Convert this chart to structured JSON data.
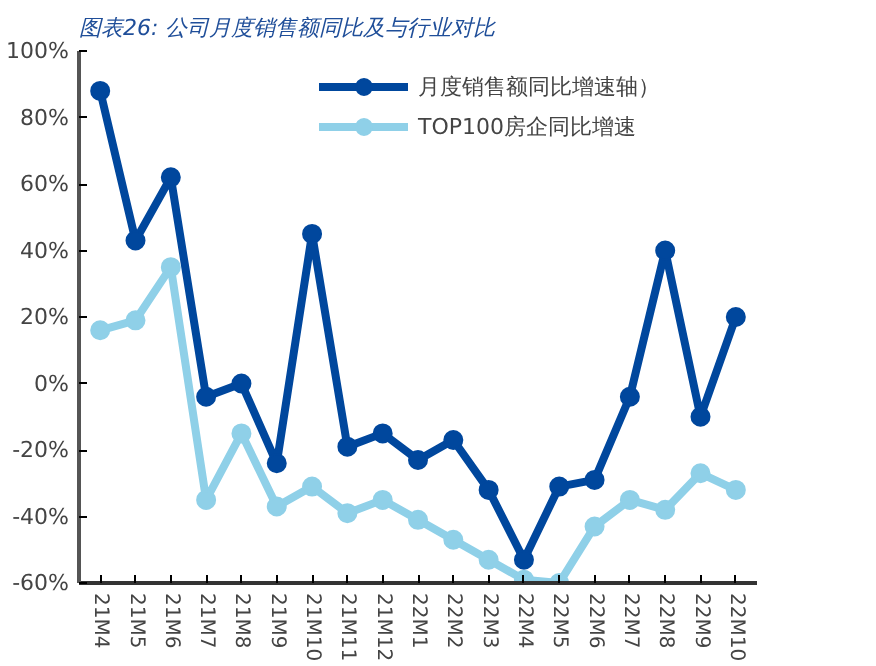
{
  "chart_data": {
    "type": "line",
    "title": "图表26: 公司月度销售额同比及与行业对比",
    "categories": [
      "21M4",
      "21M5",
      "21M6",
      "21M7",
      "21M8",
      "21M9",
      "21M10",
      "21M11",
      "21M12",
      "22M1",
      "22M2",
      "22M3",
      "22M4",
      "22M5",
      "22M6",
      "22M7",
      "22M8",
      "22M9",
      "22M10"
    ],
    "series": [
      {
        "name": "月度销售额同比增速轴）",
        "color": "#00479d",
        "values": [
          88,
          43,
          62,
          -4,
          0,
          -24,
          45,
          -19,
          -15,
          -23,
          -17,
          -32,
          -53,
          -31,
          -29,
          -4,
          40,
          -10,
          20
        ]
      },
      {
        "name": "TOP100房企同比增速",
        "color": "#8fd0e8",
        "values": [
          16,
          19,
          35,
          -35,
          -15,
          -37,
          -31,
          -39,
          -35,
          -41,
          -47,
          -53,
          -59,
          -60,
          -43,
          -35,
          -38,
          -27,
          -32
        ]
      }
    ],
    "ylim": [
      -60,
      100
    ],
    "yticks": [
      {
        "value": -60,
        "label": "-60%"
      },
      {
        "value": -40,
        "label": "-40%"
      },
      {
        "value": -20,
        "label": "-20%"
      },
      {
        "value": 0,
        "label": "0%"
      },
      {
        "value": 20,
        "label": "20%"
      },
      {
        "value": 40,
        "label": "40%"
      },
      {
        "value": 60,
        "label": "60%"
      },
      {
        "value": 80,
        "label": "80%"
      },
      {
        "value": 100,
        "label": "100%"
      }
    ],
    "grid": false,
    "legend": "top",
    "marker": "circle",
    "line_style": "solid"
  }
}
